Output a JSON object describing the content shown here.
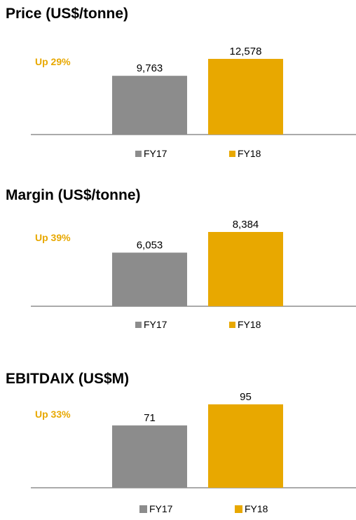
{
  "colors": {
    "fy17": "#8c8c8c",
    "fy18": "#e8a800",
    "change": "#e8a800"
  },
  "chart_data": [
    {
      "type": "bar",
      "title": "Price (US$/tonne)",
      "change_label": "Up 29%",
      "categories": [
        "FY17",
        "FY18"
      ],
      "values": [
        9763,
        12578
      ],
      "value_labels": [
        "9,763",
        "12,578"
      ],
      "ylim": [
        0,
        12578
      ]
    },
    {
      "type": "bar",
      "title": "Margin (US$/tonne)",
      "change_label": "Up 39%",
      "categories": [
        "FY17",
        "FY18"
      ],
      "values": [
        6053,
        8384
      ],
      "value_labels": [
        "6,053",
        "8,384"
      ],
      "ylim": [
        0,
        8384
      ]
    },
    {
      "type": "bar",
      "title": "EBITDAIX (US$M)",
      "change_label": "Up 33%",
      "categories": [
        "FY17",
        "FY18"
      ],
      "values": [
        71,
        95
      ],
      "value_labels": [
        "71",
        "95"
      ],
      "ylim": [
        0,
        95
      ]
    }
  ]
}
